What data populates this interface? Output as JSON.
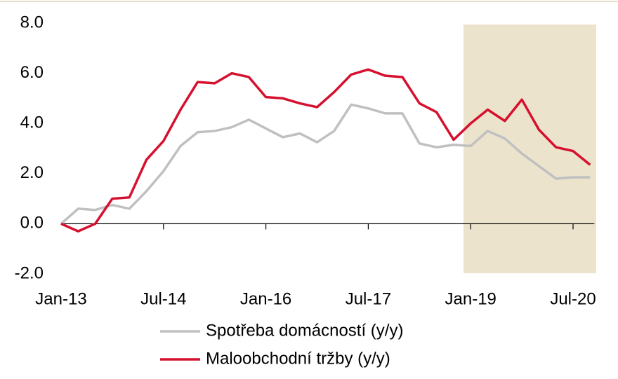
{
  "chart_data": {
    "type": "line",
    "categories": [
      "Jan-13",
      null,
      null,
      null,
      null,
      null,
      "Jul-14",
      null,
      null,
      null,
      null,
      null,
      "Jan-16",
      null,
      null,
      null,
      null,
      null,
      "Jul-17",
      null,
      null,
      null,
      null,
      null,
      "Jan-19",
      null,
      null,
      null,
      null,
      null,
      "Jul-20",
      null
    ],
    "series": [
      {
        "name": "Spotřeba domácností (y/y)",
        "color": "#c0c0c0",
        "values": [
          0.0,
          0.6,
          0.55,
          0.75,
          0.6,
          1.3,
          2.1,
          3.1,
          3.65,
          3.7,
          3.85,
          4.15,
          3.8,
          3.45,
          3.6,
          3.25,
          3.7,
          4.75,
          4.6,
          4.4,
          4.4,
          3.2,
          3.05,
          3.15,
          3.1,
          3.7,
          3.4,
          2.8,
          2.3,
          1.8,
          1.85,
          1.85
        ]
      },
      {
        "name": "Maloobchodní tržby (y/y)",
        "color": "#d6102f",
        "values": [
          0.0,
          -0.3,
          0.0,
          1.0,
          1.05,
          2.55,
          3.3,
          4.55,
          5.65,
          5.6,
          6.0,
          5.85,
          5.05,
          5.0,
          4.8,
          4.65,
          5.25,
          5.95,
          6.15,
          5.9,
          5.85,
          4.8,
          4.45,
          3.35,
          4.0,
          4.55,
          4.1,
          4.95,
          3.75,
          3.05,
          2.9,
          2.35
        ]
      }
    ],
    "ylim": [
      -2.0,
      8.0
    ],
    "yticks": [
      {
        "value": -2,
        "label": "-2.0"
      },
      {
        "value": 0,
        "label": "0.0"
      },
      {
        "value": 2,
        "label": "2.0"
      },
      {
        "value": 4,
        "label": "4.0"
      },
      {
        "value": 6,
        "label": "6.0"
      },
      {
        "value": 8,
        "label": "8.0"
      }
    ],
    "grid": false,
    "legend": "bottom"
  }
}
